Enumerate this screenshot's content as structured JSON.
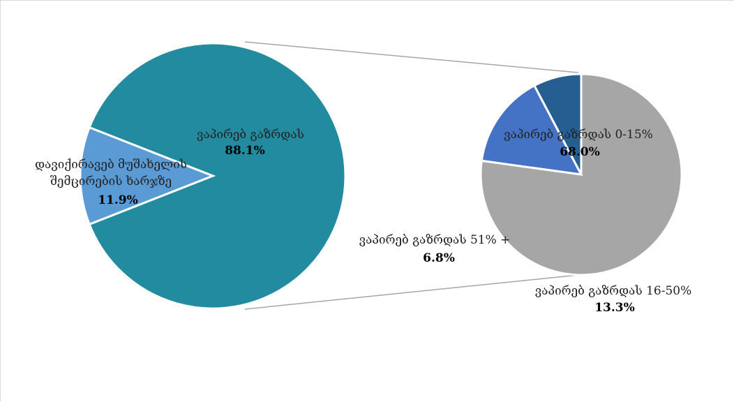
{
  "chart_data": {
    "type": "pie",
    "subtype": "pie-of-pie",
    "main": {
      "slices": [
        {
          "name": "ვაპირებ გაზრდას",
          "value": 88.1,
          "value_label": "88.1%",
          "color": "#238b9f"
        },
        {
          "name_lines": [
            "დავიქირავებ მუშახელის",
            "შემცირების ხარჯზე"
          ],
          "value": 11.9,
          "value_label": "11.9%",
          "color": "#5b9bd5"
        }
      ]
    },
    "secondary": {
      "slices": [
        {
          "name": "ვაპირებ გაზრდას 0-15%",
          "value": 68.0,
          "value_label": "68.0%",
          "color": "#a6a6a6"
        },
        {
          "name": "ვაპირებ გაზრდას 16-50%",
          "value": 13.3,
          "value_label": "13.3%",
          "color": "#4472c4"
        },
        {
          "name": "ვაპირებ გაზრდას 51% +",
          "value": 6.8,
          "value_label": "6.8%",
          "color": "#255e91"
        }
      ]
    },
    "connector_color": "#a6a6a6",
    "legend": "none"
  }
}
